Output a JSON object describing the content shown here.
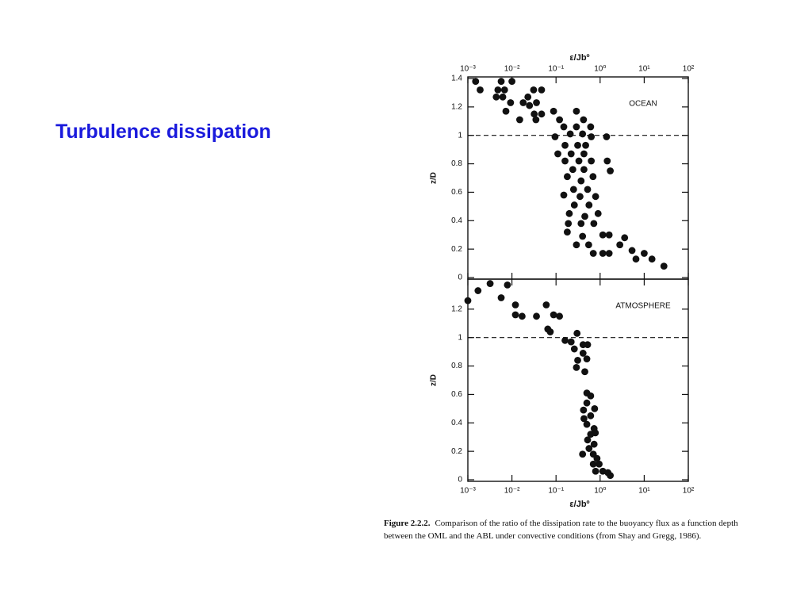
{
  "slide": {
    "title": "Turbulence dissipation"
  },
  "chart_data": [
    {
      "type": "scatter",
      "annotation": "OCEAN",
      "xlabel": "ε/Jbº",
      "ylabel": "z/D",
      "xscale": "log",
      "xaxis_position": "top",
      "color": "#111111",
      "hline": 1,
      "xlim": [
        0.001,
        100
      ],
      "ylim": [
        0,
        1.4
      ],
      "xticks": [
        {
          "value": 0.001,
          "label": "10⁻³"
        },
        {
          "value": 0.01,
          "label": "10⁻²"
        },
        {
          "value": 0.1,
          "label": "10⁻¹"
        },
        {
          "value": 1,
          "label": "10⁰"
        },
        {
          "value": 10,
          "label": "10¹"
        },
        {
          "value": 100,
          "label": "10²"
        }
      ],
      "yticks": [
        0,
        0.2,
        0.4,
        0.6,
        0.8,
        1,
        1.2,
        1.4
      ],
      "x": [
        0.0015,
        0.0019,
        0.0057,
        0.0048,
        0.0068,
        0.01,
        0.0044,
        0.0062,
        0.0093,
        0.0073,
        0.018,
        0.023,
        0.031,
        0.047,
        0.025,
        0.036,
        0.015,
        0.032,
        0.047,
        0.035,
        0.088,
        0.12,
        0.29,
        0.15,
        0.29,
        0.42,
        0.21,
        0.4,
        0.61,
        0.095,
        0.16,
        0.31,
        0.47,
        0.63,
        0.11,
        0.22,
        0.43,
        1.4,
        0.16,
        0.33,
        0.63,
        1.45,
        0.24,
        0.43,
        1.7,
        0.18,
        0.37,
        0.69,
        0.25,
        0.52,
        0.15,
        0.35,
        0.79,
        0.26,
        0.56,
        0.2,
        0.45,
        0.9,
        0.19,
        0.37,
        0.72,
        0.18,
        0.4,
        1.15,
        0.55,
        1.6,
        3.6,
        1.15,
        1.6,
        2.8,
        5.3,
        10,
        6.5,
        15,
        28,
        0.7,
        0.29
      ],
      "y": [
        1.38,
        1.32,
        1.38,
        1.32,
        1.32,
        1.38,
        1.27,
        1.27,
        1.23,
        1.17,
        1.23,
        1.27,
        1.32,
        1.32,
        1.21,
        1.23,
        1.11,
        1.15,
        1.15,
        1.11,
        1.17,
        1.11,
        1.17,
        1.06,
        1.06,
        1.11,
        1.01,
        1.01,
        1.06,
        0.99,
        0.93,
        0.93,
        0.93,
        0.99,
        0.87,
        0.87,
        0.87,
        0.99,
        0.82,
        0.82,
        0.82,
        0.82,
        0.76,
        0.76,
        0.75,
        0.71,
        0.68,
        0.71,
        0.62,
        0.62,
        0.58,
        0.57,
        0.57,
        0.51,
        0.51,
        0.45,
        0.43,
        0.45,
        0.38,
        0.38,
        0.38,
        0.32,
        0.29,
        0.3,
        0.23,
        0.3,
        0.28,
        0.17,
        0.17,
        0.23,
        0.19,
        0.17,
        0.13,
        0.13,
        0.08,
        0.17,
        0.23
      ]
    },
    {
      "type": "scatter",
      "annotation": "ATMOSPHERE",
      "xlabel": "ε/Jbº",
      "ylabel": "z/D",
      "xscale": "log",
      "xaxis_position": "bottom",
      "color": "#111111",
      "hline": 1,
      "xlim": [
        0.001,
        100
      ],
      "ylim": [
        0,
        1.4
      ],
      "xticks": [
        {
          "value": 0.001,
          "label": "10⁻³"
        },
        {
          "value": 0.01,
          "label": "10⁻²"
        },
        {
          "value": 0.1,
          "label": "10⁻¹"
        },
        {
          "value": 1,
          "label": "10⁰"
        },
        {
          "value": 10,
          "label": "10¹"
        },
        {
          "value": 100,
          "label": "10²"
        }
      ],
      "yticks": [
        0,
        0.2,
        0.4,
        0.6,
        0.8,
        1,
        1.2
      ],
      "x": [
        0.001,
        0.0017,
        0.0032,
        0.0079,
        0.0057,
        0.012,
        0.012,
        0.017,
        0.036,
        0.06,
        0.088,
        0.12,
        0.065,
        0.074,
        0.16,
        0.22,
        0.3,
        0.41,
        0.52,
        0.26,
        0.41,
        0.31,
        0.5,
        0.29,
        0.45,
        0.5,
        0.61,
        0.5,
        0.75,
        0.42,
        0.61,
        0.5,
        0.73,
        0.61,
        0.52,
        0.73,
        0.4,
        0.7,
        0.85,
        0.7,
        0.95,
        0.79,
        1.15,
        1.5,
        1.7,
        0.56,
        0.43,
        0.78
      ],
      "y": [
        1.26,
        1.33,
        1.38,
        1.37,
        1.28,
        1.23,
        1.16,
        1.15,
        1.15,
        1.23,
        1.16,
        1.15,
        1.06,
        1.04,
        0.98,
        0.97,
        1.03,
        0.95,
        0.95,
        0.92,
        0.89,
        0.84,
        0.85,
        0.79,
        0.76,
        0.61,
        0.59,
        0.54,
        0.5,
        0.49,
        0.45,
        0.39,
        0.36,
        0.32,
        0.28,
        0.25,
        0.18,
        0.18,
        0.15,
        0.11,
        0.11,
        0.06,
        0.06,
        0.05,
        0.03,
        0.22,
        0.43,
        0.33
      ]
    }
  ],
  "caption": {
    "label": "Figure 2.2.2.",
    "text": "Comparison of the ratio of the dissipation rate to the buoyancy flux as a function depth between the OML and the ABL under convective conditions (from Shay and Gregg, 1986)."
  }
}
